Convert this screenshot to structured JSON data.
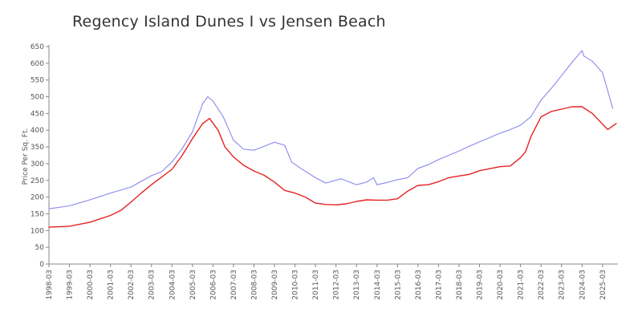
{
  "chart_data": {
    "type": "line",
    "title": "Regency Island Dunes I vs Jensen Beach",
    "xlabel": "",
    "ylabel": "Price Per Sq. Ft.",
    "ylim": [
      0,
      650
    ],
    "yticks": [
      0,
      50,
      100,
      150,
      200,
      250,
      300,
      350,
      400,
      450,
      500,
      550,
      600,
      650
    ],
    "xlim": [
      "1998-03",
      "2025-12"
    ],
    "xticks": [
      "1998-03",
      "1999-03",
      "2000-03",
      "2001-03",
      "2002-03",
      "2003-03",
      "2004-03",
      "2005-03",
      "2006-03",
      "2007-03",
      "2008-03",
      "2009-03",
      "2010-03",
      "2011-03",
      "2012-03",
      "2013-03",
      "2014-03",
      "2015-03",
      "2016-03",
      "2017-03",
      "2018-03",
      "2019-03",
      "2020-03",
      "2021-03",
      "2022-03",
      "2023-03",
      "2024-03",
      "2025-03"
    ],
    "grid": false,
    "legend": "none",
    "series": [
      {
        "color": "#8888ee",
        "points": [
          [
            "1998-03",
            165
          ],
          [
            "1999-03",
            174
          ],
          [
            "2000-03",
            192
          ],
          [
            "2001-03",
            212
          ],
          [
            "2002-03",
            230
          ],
          [
            "2003-03",
            264
          ],
          [
            "2003-09",
            276
          ],
          [
            "2004-03",
            305
          ],
          [
            "2004-09",
            345
          ],
          [
            "2005-03",
            395
          ],
          [
            "2005-09",
            480
          ],
          [
            "2005-12",
            500
          ],
          [
            "2006-03",
            487
          ],
          [
            "2006-09",
            440
          ],
          [
            "2007-03",
            370
          ],
          [
            "2007-09",
            343
          ],
          [
            "2008-03",
            340
          ],
          [
            "2008-09",
            352
          ],
          [
            "2009-03",
            364
          ],
          [
            "2009-09",
            355
          ],
          [
            "2010-01",
            305
          ],
          [
            "2010-06",
            287
          ],
          [
            "2011-03",
            258
          ],
          [
            "2011-09",
            242
          ],
          [
            "2012-06",
            255
          ],
          [
            "2013-03",
            237
          ],
          [
            "2013-09",
            245
          ],
          [
            "2014-01",
            258
          ],
          [
            "2014-03",
            237
          ],
          [
            "2014-09",
            244
          ],
          [
            "2015-03",
            252
          ],
          [
            "2015-09",
            258
          ],
          [
            "2016-03",
            286
          ],
          [
            "2016-09",
            297
          ],
          [
            "2017-03",
            312
          ],
          [
            "2017-09",
            325
          ],
          [
            "2018-03",
            338
          ],
          [
            "2018-09",
            352
          ],
          [
            "2019-03",
            365
          ],
          [
            "2019-09",
            378
          ],
          [
            "2020-03",
            391
          ],
          [
            "2020-09",
            402
          ],
          [
            "2021-03",
            415
          ],
          [
            "2021-09",
            440
          ],
          [
            "2022-03",
            490
          ],
          [
            "2022-09",
            525
          ],
          [
            "2023-03",
            563
          ],
          [
            "2023-09",
            602
          ],
          [
            "2024-03",
            638
          ],
          [
            "2024-04",
            622
          ],
          [
            "2024-09",
            606
          ],
          [
            "2025-03",
            572
          ],
          [
            "2025-09",
            465
          ]
        ]
      },
      {
        "color": "#e52222",
        "points": [
          [
            "1998-03",
            110
          ],
          [
            "1999-03",
            113
          ],
          [
            "2000-03",
            125
          ],
          [
            "2001-03",
            145
          ],
          [
            "2001-09",
            160
          ],
          [
            "2002-03",
            185
          ],
          [
            "2002-09",
            212
          ],
          [
            "2003-03",
            237
          ],
          [
            "2003-09",
            260
          ],
          [
            "2004-03",
            283
          ],
          [
            "2004-09",
            325
          ],
          [
            "2005-03",
            375
          ],
          [
            "2005-09",
            420
          ],
          [
            "2006-01",
            435
          ],
          [
            "2006-06",
            400
          ],
          [
            "2006-10",
            350
          ],
          [
            "2007-03",
            320
          ],
          [
            "2007-09",
            295
          ],
          [
            "2008-03",
            278
          ],
          [
            "2008-09",
            265
          ],
          [
            "2009-03",
            245
          ],
          [
            "2009-09",
            220
          ],
          [
            "2010-03",
            212
          ],
          [
            "2010-09",
            200
          ],
          [
            "2011-03",
            182
          ],
          [
            "2011-09",
            178
          ],
          [
            "2012-03",
            177
          ],
          [
            "2012-09",
            180
          ],
          [
            "2013-03",
            187
          ],
          [
            "2013-09",
            192
          ],
          [
            "2014-03",
            191
          ],
          [
            "2014-09",
            191
          ],
          [
            "2015-03",
            195
          ],
          [
            "2015-09",
            218
          ],
          [
            "2016-03",
            235
          ],
          [
            "2016-09",
            237
          ],
          [
            "2017-03",
            246
          ],
          [
            "2017-09",
            258
          ],
          [
            "2018-03",
            263
          ],
          [
            "2018-09",
            268
          ],
          [
            "2019-03",
            279
          ],
          [
            "2019-09",
            285
          ],
          [
            "2020-03",
            291
          ],
          [
            "2020-09",
            293
          ],
          [
            "2021-03",
            318
          ],
          [
            "2021-06",
            336
          ],
          [
            "2021-09",
            380
          ],
          [
            "2022-03",
            440
          ],
          [
            "2022-09",
            456
          ],
          [
            "2023-03",
            463
          ],
          [
            "2023-09",
            470
          ],
          [
            "2024-03",
            470
          ],
          [
            "2024-09",
            450
          ],
          [
            "2025-03",
            418
          ],
          [
            "2025-06",
            402
          ],
          [
            "2025-11",
            420
          ]
        ]
      }
    ]
  }
}
